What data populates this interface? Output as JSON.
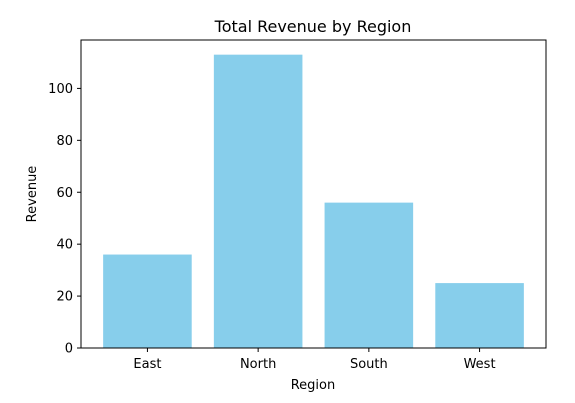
{
  "chart_data": {
    "type": "bar",
    "title": "Total Revenue by Region",
    "xlabel": "Region",
    "ylabel": "Revenue",
    "categories": [
      "East",
      "North",
      "South",
      "West"
    ],
    "values": [
      36,
      113,
      56,
      25
    ],
    "ylim": [
      0,
      118.65
    ],
    "yticks": [
      0,
      20,
      40,
      60,
      80,
      100
    ],
    "bar_color": "#87ceeb",
    "grid": false,
    "legend": "none"
  }
}
